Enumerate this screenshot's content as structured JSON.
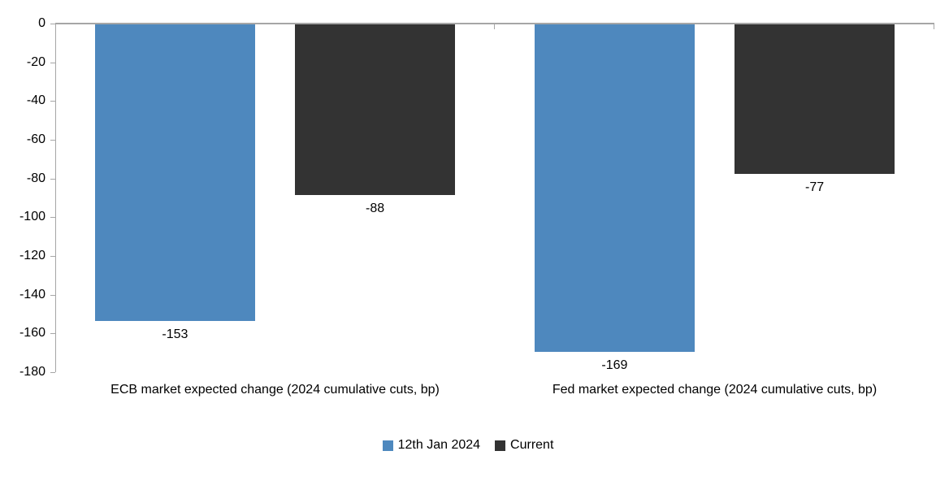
{
  "chart_data": {
    "type": "bar",
    "title": "",
    "categories": [
      "ECB market expected change (2024 cumulative cuts, bp)",
      "Fed market expected change (2024 cumulative cuts, bp)"
    ],
    "series": [
      {
        "name": "12th Jan 2024",
        "color": "#4E88BE",
        "values": [
          -153,
          -169
        ]
      },
      {
        "name": "Current",
        "color": "#333333",
        "values": [
          -88,
          -77
        ]
      }
    ],
    "data_labels": [
      [
        "-153",
        "-169"
      ],
      [
        "-88",
        "-77"
      ]
    ],
    "xlabel": "",
    "ylabel": "",
    "ylim": [
      -180,
      0
    ],
    "yticks": [
      0,
      -20,
      -40,
      -60,
      -80,
      -100,
      -120,
      -140,
      -160,
      -180
    ],
    "grid": false,
    "legend_position": "bottom",
    "axis_color": "#a6a6a6",
    "text_color": "#000000"
  }
}
